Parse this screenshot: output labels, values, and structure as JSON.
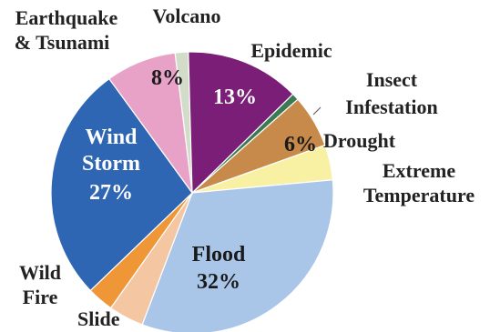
{
  "chart_data": {
    "type": "pie",
    "title": "",
    "slices": [
      {
        "name": "Volcano",
        "value": 1.5,
        "color": "#d2dcc8",
        "label": [
          "Volcano"
        ],
        "pct_label": ""
      },
      {
        "name": "Epidemic",
        "value": 13,
        "color": "#7a1e78",
        "label": [
          "Epidemic"
        ],
        "pct_label": "13%"
      },
      {
        "name": "Insect Infestation",
        "value": 0.8,
        "color": "#3c7a55",
        "label": [
          "Insect",
          "Infestation"
        ],
        "pct_label": ""
      },
      {
        "name": "Drought",
        "value": 6,
        "color": "#c78a4a",
        "label": [
          "Drought"
        ],
        "pct_label": "6%"
      },
      {
        "name": "Extreme Temperature",
        "value": 4,
        "color": "#f8f1a4",
        "label": [
          "Extreme",
          "Temperature"
        ],
        "pct_label": ""
      },
      {
        "name": "Flood",
        "value": 32,
        "color": "#a9c6e8",
        "label": [
          "Flood"
        ],
        "pct_label": "32%"
      },
      {
        "name": "Slide",
        "value": 4,
        "color": "#f4c6a2",
        "label": [
          "Slide"
        ],
        "pct_label": ""
      },
      {
        "name": "Wild Fire",
        "value": 3,
        "color": "#ef9636",
        "label": [
          "Wild",
          "Fire"
        ],
        "pct_label": ""
      },
      {
        "name": "Wind Storm",
        "value": 27,
        "color": "#2f66b4",
        "label": [
          "Wind",
          "Storm"
        ],
        "pct_label": "27%"
      },
      {
        "name": "Earthquake & Tsunami",
        "value": 8,
        "color": "#e8a2c8",
        "label": [
          "Earthquake",
          "& Tsunami"
        ],
        "pct_label": "8%"
      }
    ]
  }
}
